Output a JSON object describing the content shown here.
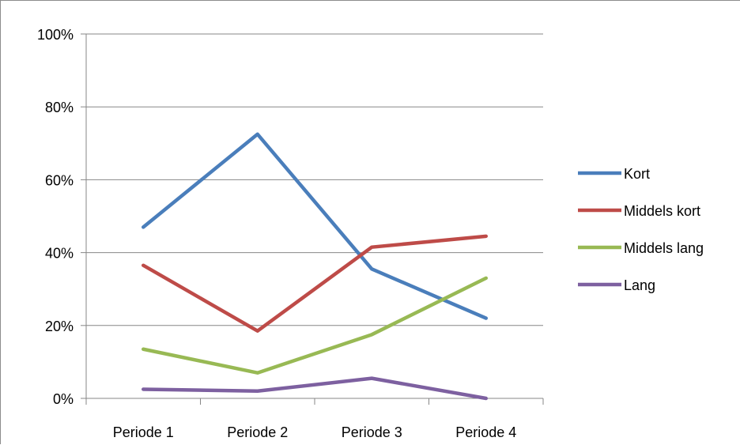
{
  "chart_data": {
    "type": "line",
    "categories": [
      "Periode 1",
      "Periode 2",
      "Periode 3",
      "Periode 4"
    ],
    "yticks": [
      "0%",
      "20%",
      "40%",
      "60%",
      "80%",
      "100%"
    ],
    "ylim": [
      0,
      100
    ],
    "grid": true,
    "legend_position": "right",
    "series": [
      {
        "name": "Kort",
        "color": "#4a7ebb",
        "values": [
          47,
          72.5,
          35.5,
          22
        ]
      },
      {
        "name": "Middels kort",
        "color": "#be4b48",
        "values": [
          36.5,
          18.5,
          41.5,
          44.5
        ]
      },
      {
        "name": "Middels lang",
        "color": "#98b954",
        "values": [
          13.5,
          7,
          17.5,
          33
        ]
      },
      {
        "name": "Lang",
        "color": "#7d60a0",
        "values": [
          2.5,
          2,
          5.5,
          0
        ]
      }
    ]
  }
}
